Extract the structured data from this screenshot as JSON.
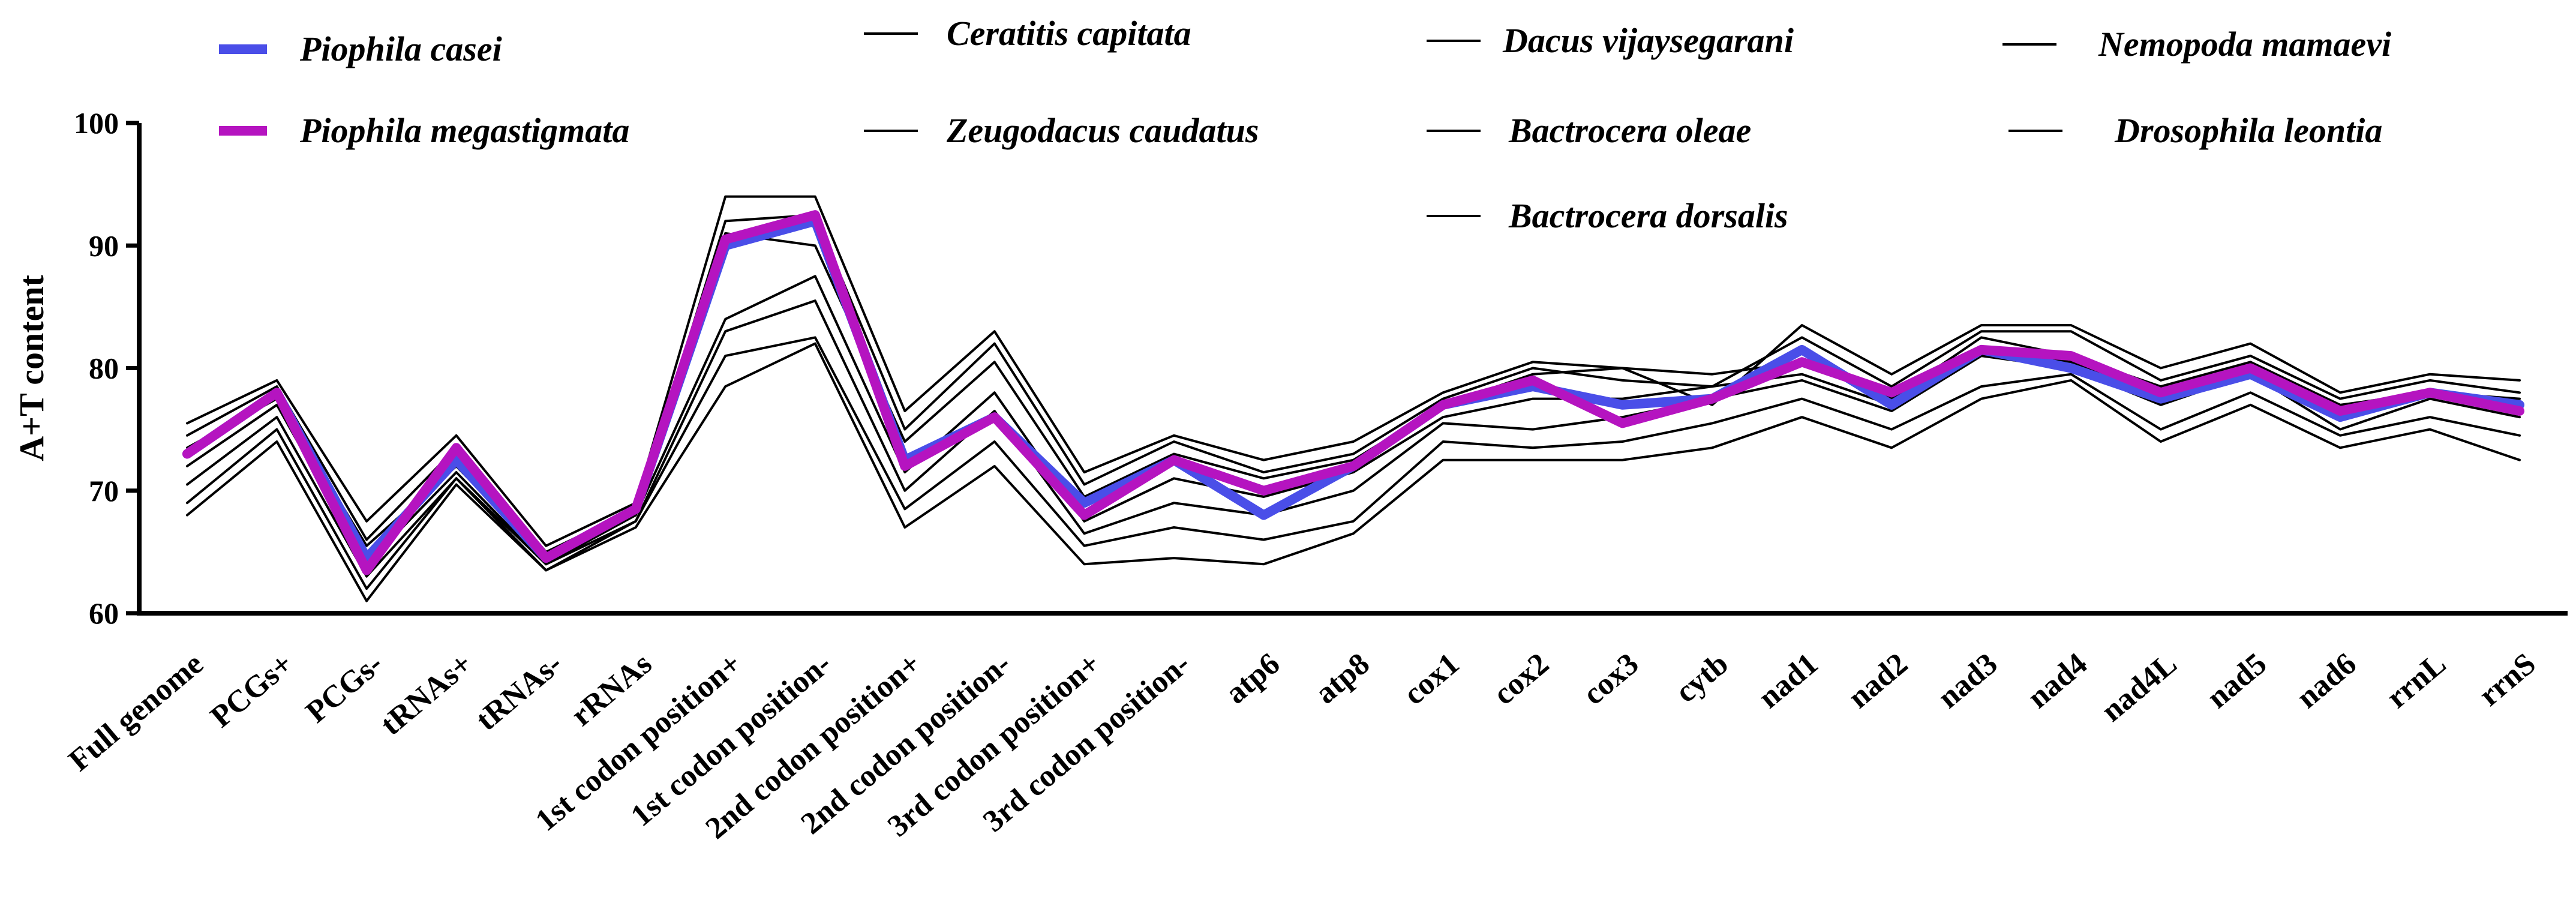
{
  "chart_data": {
    "type": "line",
    "title": "",
    "xlabel": "",
    "ylabel": "A+T content",
    "ylim": [
      60,
      100
    ],
    "yticks": [
      60,
      70,
      80,
      90,
      100
    ],
    "grid": false,
    "legend_position": "top",
    "categories": [
      "Full genome",
      "PCGs+",
      "PCGs-",
      "tRNAs+",
      "tRNAs-",
      "rRNAs",
      "1st codon position+",
      "1st codon position-",
      "2nd codon position+",
      "2nd codon position-",
      "3rd codon position+",
      "3rd codon position-",
      "atp6",
      "atp8",
      "cox1",
      "cox2",
      "cox3",
      "cytb",
      "nad1",
      "nad2",
      "nad3",
      "nad4",
      "nad4L",
      "nad5",
      "nad6",
      "rrnL",
      "rrnS"
    ],
    "series": [
      {
        "name": "Ceratitis capitata",
        "color": "#000000",
        "values": [
          75.5,
          79.0,
          67.5,
          74.5,
          65.5,
          69.0,
          94.0,
          94.0,
          76.5,
          83.0,
          71.5,
          74.5,
          72.5,
          74.0,
          78.0,
          80.5,
          80.0,
          77.0,
          83.5,
          79.5,
          83.5,
          83.5,
          80.0,
          82.0,
          78.0,
          79.5,
          79.0
        ]
      },
      {
        "name": "Dacus vijaysegarani",
        "color": "#000000",
        "values": [
          74.5,
          78.5,
          66.0,
          73.5,
          65.0,
          68.5,
          92.0,
          92.5,
          75.0,
          82.0,
          70.5,
          74.0,
          71.5,
          73.0,
          77.5,
          80.0,
          79.0,
          78.5,
          82.5,
          78.5,
          83.0,
          83.0,
          79.0,
          81.0,
          77.5,
          79.0,
          78.0
        ]
      },
      {
        "name": "Nemopoda mamaevi",
        "color": "#000000",
        "values": [
          73.5,
          77.5,
          65.5,
          72.0,
          64.5,
          68.0,
          91.0,
          90.0,
          74.0,
          80.5,
          69.5,
          73.0,
          71.0,
          72.5,
          77.0,
          79.5,
          80.0,
          79.5,
          80.5,
          77.5,
          82.5,
          81.0,
          78.5,
          80.5,
          77.0,
          78.0,
          77.5
        ]
      },
      {
        "name": "Zeugodacus caudatus",
        "color": "#000000",
        "values": [
          72.0,
          77.0,
          64.0,
          71.5,
          64.0,
          68.0,
          84.0,
          87.5,
          71.5,
          78.0,
          67.5,
          71.0,
          69.5,
          71.5,
          76.0,
          77.5,
          77.5,
          78.5,
          79.5,
          77.0,
          81.5,
          80.5,
          77.5,
          79.5,
          76.5,
          78.0,
          77.0
        ]
      },
      {
        "name": "Bactrocera oleae",
        "color": "#000000",
        "values": [
          70.5,
          76.0,
          63.0,
          71.0,
          64.0,
          67.5,
          83.0,
          85.5,
          70.0,
          76.5,
          66.5,
          69.0,
          68.0,
          70.0,
          75.5,
          75.0,
          76.0,
          77.5,
          79.0,
          76.5,
          81.0,
          80.0,
          77.0,
          79.5,
          75.0,
          77.5,
          76.0
        ]
      },
      {
        "name": "Drosophila leontia",
        "color": "#000000",
        "values": [
          69.0,
          75.0,
          62.0,
          71.0,
          63.5,
          67.5,
          81.0,
          82.5,
          68.5,
          74.0,
          65.5,
          67.0,
          66.0,
          67.5,
          74.0,
          73.5,
          74.0,
          75.5,
          77.5,
          75.0,
          78.5,
          79.5,
          75.0,
          78.0,
          74.5,
          76.0,
          74.5
        ]
      },
      {
        "name": "Bactrocera dorsalis",
        "color": "#000000",
        "values": [
          68.0,
          74.0,
          61.0,
          70.5,
          63.5,
          67.0,
          78.5,
          82.0,
          67.0,
          72.0,
          64.0,
          64.5,
          64.0,
          66.5,
          72.5,
          72.5,
          72.5,
          73.5,
          76.0,
          73.5,
          77.5,
          79.0,
          74.0,
          77.0,
          73.5,
          75.0,
          72.5
        ]
      },
      {
        "name": "Piophila casei",
        "color": "#4a4ee8",
        "values": [
          73.0,
          78.0,
          64.5,
          72.5,
          64.5,
          68.5,
          90.0,
          92.0,
          72.5,
          76.0,
          69.0,
          72.5,
          68.0,
          72.0,
          77.0,
          78.5,
          77.0,
          77.5,
          81.5,
          77.0,
          81.5,
          80.0,
          77.5,
          79.5,
          76.0,
          78.0,
          77.0
        ]
      },
      {
        "name": "Piophila megastigmata",
        "color": "#b514c0",
        "values": [
          73.0,
          78.0,
          63.5,
          73.5,
          64.5,
          68.5,
          90.5,
          92.5,
          72.0,
          76.0,
          68.0,
          72.5,
          70.0,
          72.0,
          77.0,
          79.0,
          75.5,
          77.5,
          80.5,
          78.0,
          81.5,
          81.0,
          78.0,
          80.0,
          76.5,
          78.0,
          76.5
        ]
      }
    ],
    "legend": [
      {
        "name": "Piophila casei",
        "color": "#4a4ee8"
      },
      {
        "name": "Piophila megastigmata",
        "color": "#b514c0"
      },
      {
        "name": "Ceratitis capitata",
        "color": "#000000"
      },
      {
        "name": "Zeugodacus caudatus",
        "color": "#000000"
      },
      {
        "name": "Dacus vijaysegarani",
        "color": "#000000"
      },
      {
        "name": "Bactrocera oleae",
        "color": "#000000"
      },
      {
        "name": "Bactrocera dorsalis",
        "color": "#000000"
      },
      {
        "name": "Nemopoda mamaevi",
        "color": "#000000"
      },
      {
        "name": "Drosophila leontia",
        "color": "#000000"
      }
    ]
  }
}
